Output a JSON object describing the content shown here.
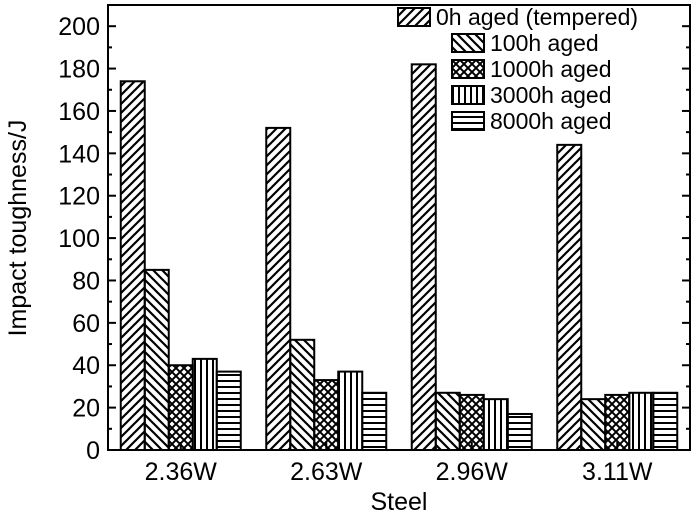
{
  "chart_data": {
    "type": "bar",
    "title": "",
    "xlabel": "Steel",
    "ylabel": "Impact toughness/J",
    "ylim": [
      0,
      210
    ],
    "yticks": [
      0,
      20,
      40,
      60,
      80,
      100,
      120,
      140,
      160,
      180,
      200
    ],
    "categories": [
      "2.36W",
      "2.63W",
      "2.96W",
      "3.11W"
    ],
    "legend_position": "top-right",
    "series": [
      {
        "name": "0h aged (tempered)",
        "pattern": "diagonal-up",
        "values": [
          174,
          152,
          182,
          144
        ]
      },
      {
        "name": "100h aged",
        "pattern": "diagonal-down",
        "values": [
          85,
          52,
          27,
          24
        ]
      },
      {
        "name": "1000h aged",
        "pattern": "crosshatch",
        "values": [
          40,
          33,
          26,
          26
        ]
      },
      {
        "name": "3000h aged",
        "pattern": "vertical",
        "values": [
          43,
          37,
          24,
          27
        ]
      },
      {
        "name": "8000h aged",
        "pattern": "horizontal",
        "values": [
          37,
          27,
          17,
          27
        ]
      }
    ]
  }
}
